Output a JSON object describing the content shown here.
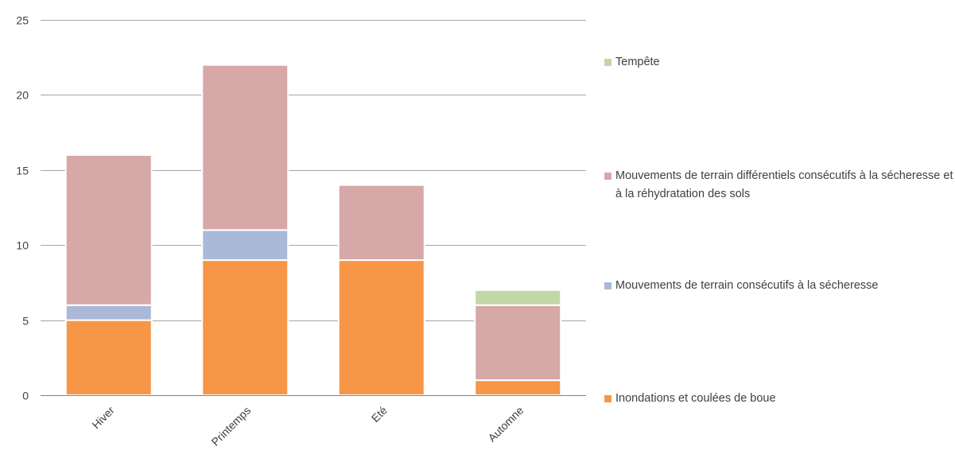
{
  "chart_data": {
    "type": "bar",
    "stacked": true,
    "categories": [
      "Hiver",
      "Printemps",
      "Eté",
      "Automne"
    ],
    "series": [
      {
        "name": "Inondations et coulées de boue",
        "values": [
          5,
          9,
          9,
          1
        ],
        "color": "#f79646"
      },
      {
        "name": "Mouvements de terrain consécutifs à la sécheresse",
        "values": [
          1,
          2,
          0,
          0
        ],
        "color": "#a9b9d7"
      },
      {
        "name": "Mouvements de terrain différentiels consécutifs à la sécheresse et à la réhydratation des sols",
        "values": [
          10,
          11,
          5,
          5
        ],
        "color": "#d7a8a8"
      },
      {
        "name": "Tempête",
        "values": [
          0,
          0,
          0,
          1
        ],
        "color": "#c3d6a8"
      }
    ],
    "ylim": [
      0,
      25
    ],
    "yticks": [
      0,
      5,
      10,
      15,
      20,
      25
    ],
    "grid": true,
    "legend_position": "right",
    "title": "",
    "xlabel": "",
    "ylabel": ""
  }
}
